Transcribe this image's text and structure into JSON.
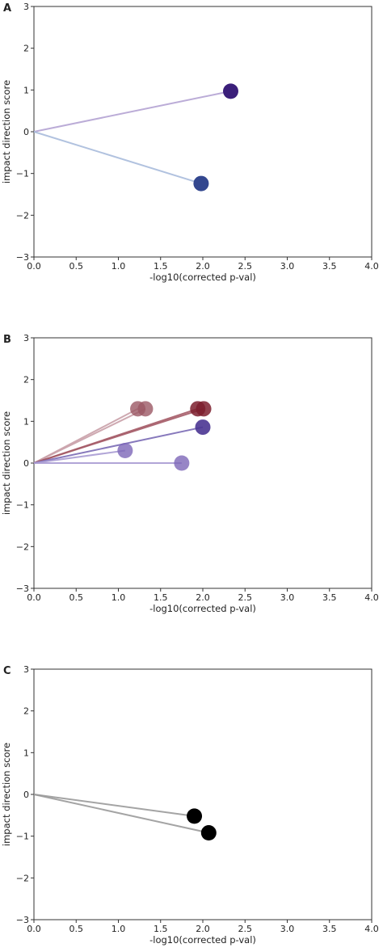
{
  "chart_data": [
    {
      "panel": "A",
      "type": "scatter",
      "xlabel": "-log10(corrected p-val)",
      "ylabel": "impact direction score",
      "xlim": [
        0,
        4.0
      ],
      "ylim": [
        -3,
        3
      ],
      "xticks": [
        "0.0",
        "0.5",
        "1.0",
        "1.5",
        "2.0",
        "2.5",
        "3.0",
        "3.5",
        "4.0"
      ],
      "yticks": [
        "3",
        "2",
        "1",
        "0",
        "−1",
        "−2",
        "−3"
      ],
      "grid": false,
      "points": [
        {
          "x": 2.33,
          "y": 0.97,
          "color": "#3b1f7a",
          "line_color": "#b4a3d3",
          "opacity": 1.0
        },
        {
          "x": 1.98,
          "y": -1.24,
          "color": "#33478f",
          "line_color": "#a9bbdc",
          "opacity": 1.0
        }
      ]
    },
    {
      "panel": "B",
      "type": "scatter",
      "xlabel": "-log10(corrected p-val)",
      "ylabel": "impact direction score",
      "xlim": [
        0,
        4.0
      ],
      "ylim": [
        -3,
        3
      ],
      "xticks": [
        "0.0",
        "0.5",
        "1.0",
        "1.5",
        "2.0",
        "2.5",
        "3.0",
        "3.5",
        "4.0"
      ],
      "yticks": [
        "3",
        "2",
        "1",
        "0",
        "−1",
        "−2",
        "−3"
      ],
      "grid": false,
      "points": [
        {
          "x": 1.23,
          "y": 1.3,
          "color": "#9b5864",
          "line_color": "#c9a0a8",
          "opacity": 0.8
        },
        {
          "x": 1.32,
          "y": 1.3,
          "color": "#9b5864",
          "line_color": "#c9a0a8",
          "opacity": 0.8
        },
        {
          "x": 1.94,
          "y": 1.3,
          "color": "#7d1f2e",
          "line_color": "#a45a66",
          "opacity": 0.85
        },
        {
          "x": 2.01,
          "y": 1.3,
          "color": "#7d1f2e",
          "line_color": "#a45a66",
          "opacity": 0.85
        },
        {
          "x": 2.0,
          "y": 0.86,
          "color": "#4a3592",
          "line_color": "#7a6ab5",
          "opacity": 0.9
        },
        {
          "x": 1.08,
          "y": 0.3,
          "color": "#7d66b8",
          "line_color": "#a99bd3",
          "opacity": 0.8
        },
        {
          "x": 1.75,
          "y": 0.0,
          "color": "#7d66b8",
          "line_color": "#a99bd3",
          "opacity": 0.8
        }
      ]
    },
    {
      "panel": "C",
      "type": "scatter",
      "xlabel": "-log10(corrected p-val)",
      "ylabel": "impact direction score",
      "xlim": [
        0,
        4.0
      ],
      "ylim": [
        -3,
        3
      ],
      "xticks": [
        "0.0",
        "0.5",
        "1.0",
        "1.5",
        "2.0",
        "2.5",
        "3.0",
        "3.5",
        "4.0"
      ],
      "yticks": [
        "3",
        "2",
        "1",
        "0",
        "−1",
        "−2",
        "−3"
      ],
      "grid": false,
      "points": [
        {
          "x": 1.9,
          "y": -0.52,
          "color": "#000000",
          "line_color": "#9a9a9a",
          "opacity": 1.0
        },
        {
          "x": 2.07,
          "y": -0.92,
          "color": "#000000",
          "line_color": "#9a9a9a",
          "opacity": 1.0
        }
      ]
    }
  ]
}
